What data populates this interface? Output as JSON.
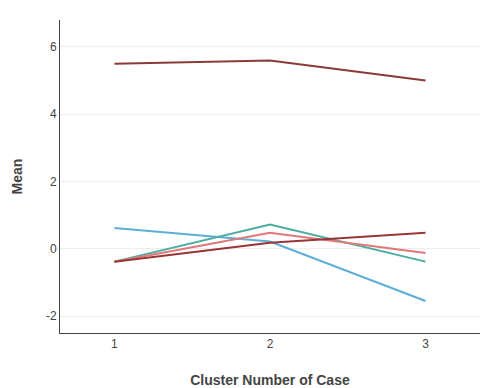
{
  "chart_data": {
    "type": "line",
    "x": [
      1,
      2,
      3
    ],
    "series": [
      {
        "color": "#8B3A3A",
        "values": [
          5.5,
          5.6,
          5.0
        ]
      },
      {
        "color": "#5BAFD6",
        "values": [
          0.62,
          0.22,
          -1.55
        ]
      },
      {
        "color": "#4AADA0",
        "values": [
          -0.38,
          0.72,
          -0.38
        ]
      },
      {
        "color": "#E07878",
        "values": [
          -0.38,
          0.48,
          -0.12
        ]
      },
      {
        "color": "#9B3535",
        "values": [
          -0.38,
          0.18,
          0.48
        ]
      }
    ],
    "xlabel": "Cluster Number of Case",
    "ylabel": "Mean",
    "xlim": [
      0.65,
      3.35
    ],
    "ylim": [
      -2.5,
      6.8
    ],
    "xticks": [
      1,
      2,
      3
    ],
    "yticks": [
      -2,
      0,
      2,
      4,
      6
    ],
    "grid": "y"
  }
}
